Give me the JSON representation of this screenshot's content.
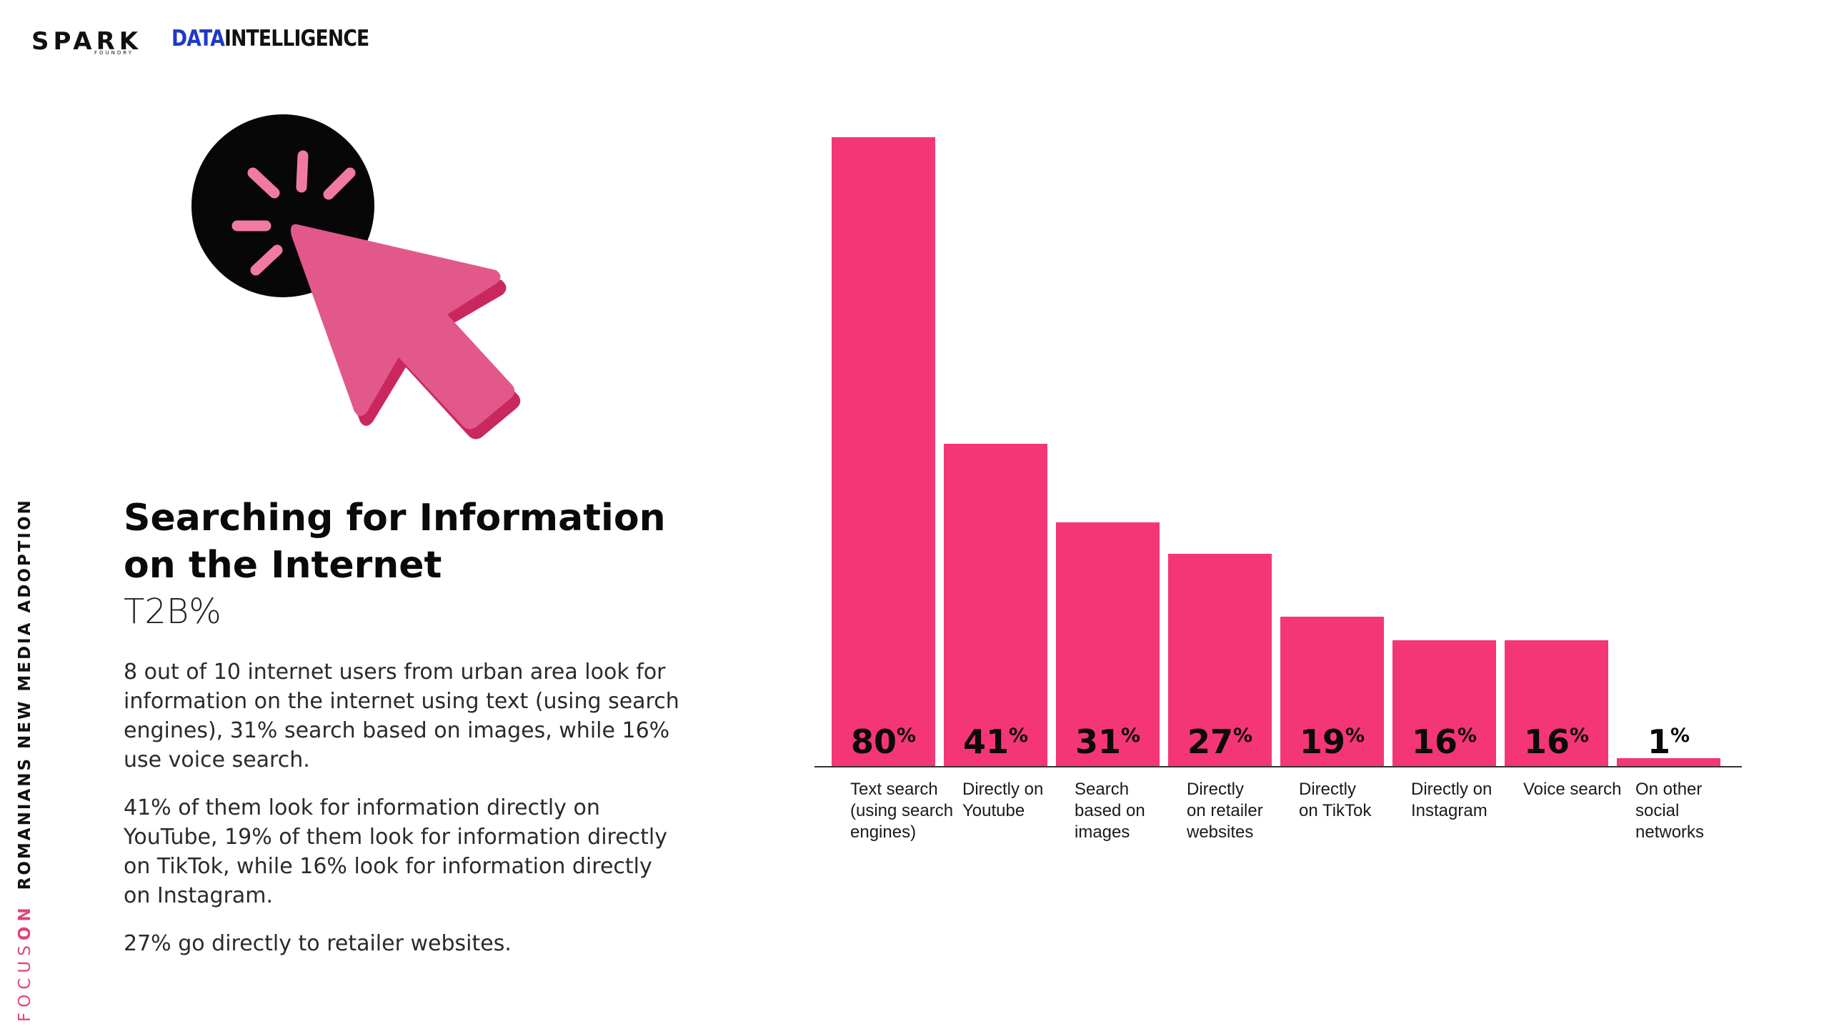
{
  "header": {
    "logo_spark": "SPARK",
    "logo_spark_sub": "FOUNDRY",
    "logo_di_part1": "DATA",
    "logo_di_part2": "INTELLIGENCE"
  },
  "side_label": {
    "focus": "FOCUS",
    "on": "ON",
    "topic": "ROMANIANS NEW MEDIA ADOPTION"
  },
  "content": {
    "title": "Searching for Information on the Internet",
    "subtitle": "T2B%",
    "paragraph_1": "8 out of 10 internet users from urban area look for information on the internet using text (using search engines), 31% search based on images, while 16% use voice search.",
    "paragraph_2": "41% of them look for information directly on YouTube, 19% of them look for information directly on TikTok, while 16% look for information directly on Instagram.",
    "paragraph_3": "27% go directly to retailer websites."
  },
  "colors": {
    "bar": "#f53676",
    "accent_pink": "#e0457a",
    "cursor_pink": "#e3588a",
    "brand_blue": "#1f39c6"
  },
  "chart_data": {
    "type": "bar",
    "categories": [
      "Text search (using search engines)",
      "Directly on Youtube",
      "Search based on images",
      "Directly on retailer websites",
      "Directly on TikTok",
      "Directly on Instagram",
      "Voice search",
      "On other social networks"
    ],
    "category_lines": [
      [
        "Text search",
        "(using search",
        "engines)"
      ],
      [
        "Directly on",
        "Youtube"
      ],
      [
        "Search",
        "based on",
        "images"
      ],
      [
        "Directly",
        "on retailer",
        "websites"
      ],
      [
        "Directly",
        "on TikTok"
      ],
      [
        "Directly on",
        "Instagram"
      ],
      [
        "Voice search"
      ],
      [
        "On other",
        "social",
        "networks"
      ]
    ],
    "values": [
      80,
      41,
      31,
      27,
      19,
      16,
      16,
      1
    ],
    "value_suffix": "%",
    "ylim": [
      0,
      80
    ],
    "grid": false,
    "legend": "none"
  }
}
